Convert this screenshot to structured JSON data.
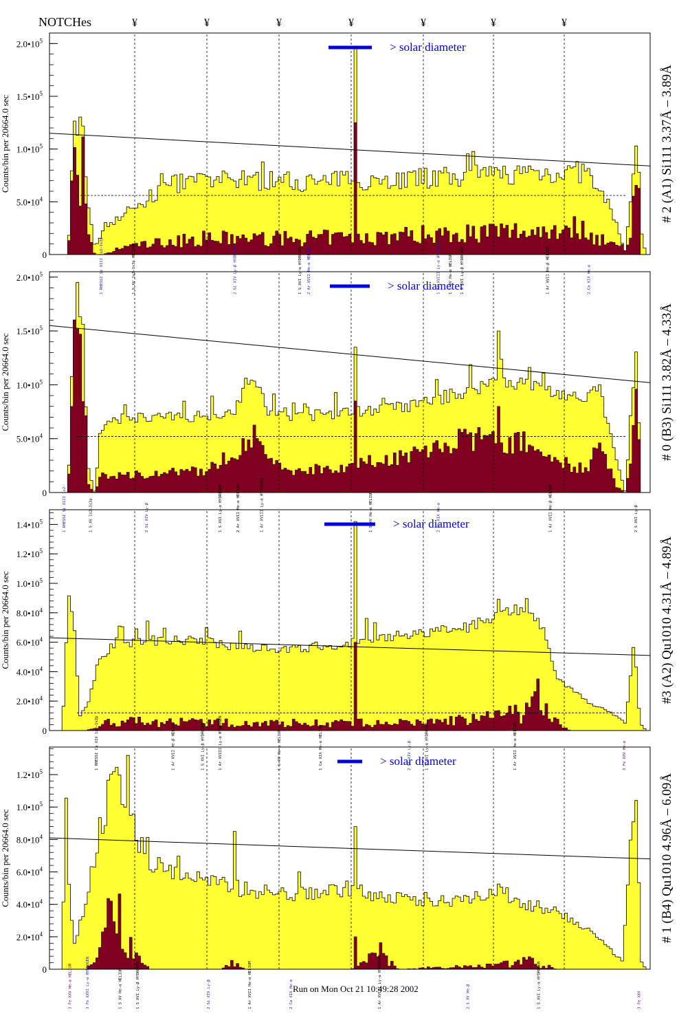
{
  "header": {
    "notches_label": "NOTCHes",
    "notch_marker": "¥",
    "notch_positions": [
      196,
      301,
      406,
      511,
      616,
      718,
      821
    ]
  },
  "footer": {
    "run_text": "Run on Mon Oct 21 10:49:28 2002"
  },
  "colors": {
    "total_fill": "#ffff33",
    "background_fill": "#800020",
    "outline": "#000000",
    "diameter_bar": "#0000dd",
    "annotation_blue": "#1a1acc",
    "annotation_purple": "#660066",
    "annotation_black": "#000000"
  },
  "chart_data": [
    {
      "type": "bar",
      "panel_id": "panel-1",
      "right_title": "# 2 (A1) Si111  3.37Å – 3.89Å",
      "ylabel": "Counts/bin per  20664.0 sec",
      "yticks": [
        {
          "v": 0,
          "text": "0"
        },
        {
          "v": 50000,
          "text": "5.0•10",
          "exp": "4"
        },
        {
          "v": 100000,
          "text": "1.0•10",
          "exp": "5"
        },
        {
          "v": 150000,
          "text": "1.5•10",
          "exp": "5"
        },
        {
          "v": 200000,
          "text": "2.0•10",
          "exp": "5"
        }
      ],
      "ylim": [
        0,
        210000
      ],
      "diameter_label": "> solar diameter",
      "diameter_bar_x": [
        478,
        541
      ],
      "fit_line": [
        115000,
        84000
      ],
      "dashed_level": 56000,
      "bins": 210,
      "fg_profile": [
        [
          0,
          0
        ],
        [
          0.02,
          0
        ],
        [
          0.03,
          120000
        ],
        [
          0.045,
          125000
        ],
        [
          0.055,
          40000
        ],
        [
          0.065,
          8000
        ],
        [
          0.09,
          30000
        ],
        [
          0.12,
          40000
        ],
        [
          0.2,
          68000
        ],
        [
          0.3,
          70000
        ],
        [
          0.4,
          70000
        ],
        [
          0.45,
          68000
        ],
        [
          0.5,
          72000
        ],
        [
          0.55,
          70000
        ],
        [
          0.6,
          72000
        ],
        [
          0.7,
          74000
        ],
        [
          0.8,
          78000
        ],
        [
          0.9,
          78000
        ],
        [
          0.95,
          30000
        ],
        [
          0.965,
          2000
        ],
        [
          0.975,
          60000
        ],
        [
          0.985,
          110000
        ],
        [
          0.992,
          20000
        ],
        [
          1,
          0
        ]
      ],
      "bg_profile": [
        [
          0,
          0
        ],
        [
          0.02,
          0
        ],
        [
          0.03,
          90000
        ],
        [
          0.045,
          80000
        ],
        [
          0.055,
          15000
        ],
        [
          0.065,
          0
        ],
        [
          0.08,
          0
        ],
        [
          0.12,
          8000
        ],
        [
          0.25,
          15000
        ],
        [
          0.4,
          15000
        ],
        [
          0.55,
          17000
        ],
        [
          0.65,
          20000
        ],
        [
          0.8,
          22000
        ],
        [
          0.88,
          26000
        ],
        [
          0.95,
          8000
        ],
        [
          0.97,
          10000
        ],
        [
          0.985,
          78000
        ],
        [
          0.992,
          0
        ],
        [
          1,
          0
        ]
      ],
      "fg_noise": 0.14,
      "bg_noise": 0.5,
      "spikes": [
        {
          "pos": 0.508,
          "fg": 195000,
          "bg": 125000
        }
      ],
      "annotations": [
        {
          "pos": 0.078,
          "text": "1 RHESSI  Si XIII 1s2–1s3p",
          "color": "blue"
        },
        {
          "pos": 0.133,
          "text": "1 S XV  1s2–1s3p HELIUM",
          "color": "black"
        },
        {
          "pos": 0.305,
          "text": "2 Si XIV  Ly-β  HYDROGEN",
          "color": "blue"
        },
        {
          "pos": 0.415,
          "text": "1 S XVI  Ly-α  HYDROGEN",
          "color": "black"
        },
        {
          "pos": 0.43,
          "text": "2 Ar XVII  He-α  HELIUM",
          "color": "blue"
        },
        {
          "pos": 0.65,
          "text": "1 Ar XVIII  Ly-α HYDROGEN",
          "color": "blue"
        },
        {
          "pos": 0.67,
          "text": "1 S XV  He-α  HELIUM",
          "color": "black"
        },
        {
          "pos": 0.69,
          "text": "1 S XVI Ly-β  HYDROGEN",
          "color": "black"
        },
        {
          "pos": 0.835,
          "text": "1 Ar XVII He-β  HELIUM",
          "color": "black"
        },
        {
          "pos": 0.905,
          "text": "2 Ca XIX  He-α",
          "color": "blue"
        }
      ]
    },
    {
      "type": "bar",
      "panel_id": "panel-2",
      "right_title": "# 0 (B3) Si111  3.82Å – 4.33Å",
      "ylabel": "Counts/bin per  20664.0 sec",
      "yticks": [
        {
          "v": 0,
          "text": "0"
        },
        {
          "v": 50000,
          "text": "5.0•10",
          "exp": "4"
        },
        {
          "v": 100000,
          "text": "1.0•10",
          "exp": "5"
        },
        {
          "v": 150000,
          "text": "1.5•10",
          "exp": "5"
        },
        {
          "v": 200000,
          "text": "2.0•10",
          "exp": "5"
        }
      ],
      "ylim": [
        0,
        205000
      ],
      "diameter_label": "> solar diameter",
      "diameter_bar_x": [
        480,
        538
      ],
      "fit_line": [
        155000,
        102000
      ],
      "dashed_level": 52000,
      "bins": 210,
      "fg_profile": [
        [
          0,
          0
        ],
        [
          0.02,
          0
        ],
        [
          0.03,
          170000
        ],
        [
          0.045,
          150000
        ],
        [
          0.055,
          20000
        ],
        [
          0.065,
          0
        ],
        [
          0.075,
          60000
        ],
        [
          0.12,
          70000
        ],
        [
          0.22,
          70000
        ],
        [
          0.3,
          75000
        ],
        [
          0.33,
          110000
        ],
        [
          0.36,
          75000
        ],
        [
          0.4,
          70000
        ],
        [
          0.5,
          75000
        ],
        [
          0.6,
          80000
        ],
        [
          0.7,
          95000
        ],
        [
          0.75,
          105000
        ],
        [
          0.8,
          100000
        ],
        [
          0.9,
          85000
        ],
        [
          0.92,
          100000
        ],
        [
          0.95,
          30000
        ],
        [
          0.965,
          0
        ],
        [
          0.975,
          80000
        ],
        [
          0.985,
          115000
        ],
        [
          0.992,
          0
        ],
        [
          1,
          0
        ]
      ],
      "bg_profile": [
        [
          0,
          0
        ],
        [
          0.02,
          0
        ],
        [
          0.03,
          150000
        ],
        [
          0.045,
          110000
        ],
        [
          0.055,
          5000
        ],
        [
          0.065,
          0
        ],
        [
          0.075,
          15000
        ],
        [
          0.25,
          20000
        ],
        [
          0.3,
          35000
        ],
        [
          0.33,
          55000
        ],
        [
          0.37,
          25000
        ],
        [
          0.4,
          20000
        ],
        [
          0.5,
          25000
        ],
        [
          0.6,
          35000
        ],
        [
          0.7,
          50000
        ],
        [
          0.8,
          45000
        ],
        [
          0.85,
          30000
        ],
        [
          0.9,
          20000
        ],
        [
          0.92,
          45000
        ],
        [
          0.95,
          5000
        ],
        [
          0.965,
          0
        ],
        [
          0.975,
          40000
        ],
        [
          0.985,
          100000
        ],
        [
          0.992,
          0
        ],
        [
          1,
          0
        ]
      ],
      "fg_noise": 0.07,
      "bg_noise": 0.25,
      "spikes": [
        {
          "pos": 0.508,
          "fg": 135000,
          "bg": 85000
        },
        {
          "pos": 0.75,
          "fg": 150000,
          "bg": 80000
        }
      ],
      "annotations": [
        {
          "pos": 0.015,
          "text": "1 RHESSI  Si XIII 1s2",
          "color": "blue"
        },
        {
          "pos": 0.06,
          "text": "1 S XV  1s2–1s3p",
          "color": "black"
        },
        {
          "pos": 0.155,
          "text": "2 Si XIV  Ly-β",
          "color": "blue"
        },
        {
          "pos": 0.28,
          "text": "1 S XVI  Ly-α  HYDROGEN",
          "color": "black"
        },
        {
          "pos": 0.31,
          "text": "2 Ar XVII  He-α HELIUM",
          "color": "black"
        },
        {
          "pos": 0.35,
          "text": "1 Ar XVIII  Ly-α HYDROGEN",
          "color": "black"
        },
        {
          "pos": 0.535,
          "text": "1 S XV  He-α  HELIUM",
          "color": "black"
        },
        {
          "pos": 0.65,
          "text": "2 Ca XIX  He-α",
          "color": "blue"
        },
        {
          "pos": 0.84,
          "text": "1 Ar XVII He-β  HELIUM",
          "color": "black"
        },
        {
          "pos": 0.985,
          "text": "2 S XVI Ly-β",
          "color": "black"
        }
      ]
    },
    {
      "type": "bar",
      "panel_id": "panel-3",
      "right_title": "#3 (A2) Qu1010  4.31Å – 4.89Å",
      "ylabel": "Counts/bin per  20664.0 sec",
      "yticks": [
        {
          "v": 0,
          "text": "0"
        },
        {
          "v": 20000,
          "text": "2.0•10",
          "exp": "4"
        },
        {
          "v": 40000,
          "text": "4.0•10",
          "exp": "4"
        },
        {
          "v": 60000,
          "text": "6.0•10",
          "exp": "4"
        },
        {
          "v": 80000,
          "text": "8.0•10",
          "exp": "4"
        },
        {
          "v": 100000,
          "text": "1.0•10",
          "exp": "5"
        },
        {
          "v": 120000,
          "text": "1.2•10",
          "exp": "5"
        },
        {
          "v": 140000,
          "text": "1.4•10",
          "exp": "5"
        }
      ],
      "ylim": [
        0,
        150000
      ],
      "diameter_label": "> solar diameter",
      "diameter_bar_x": [
        472,
        546
      ],
      "fit_line": [
        63000,
        51000
      ],
      "dashed_level": 12000,
      "bins": 210,
      "fg_profile": [
        [
          0,
          0
        ],
        [
          0.01,
          0
        ],
        [
          0.02,
          90000
        ],
        [
          0.03,
          70000
        ],
        [
          0.04,
          10000
        ],
        [
          0.055,
          20000
        ],
        [
          0.07,
          45000
        ],
        [
          0.1,
          60000
        ],
        [
          0.2,
          62000
        ],
        [
          0.3,
          58000
        ],
        [
          0.4,
          55000
        ],
        [
          0.5,
          60000
        ],
        [
          0.6,
          65000
        ],
        [
          0.7,
          70000
        ],
        [
          0.75,
          80000
        ],
        [
          0.8,
          85000
        ],
        [
          0.82,
          75000
        ],
        [
          0.85,
          35000
        ],
        [
          0.9,
          20000
        ],
        [
          0.95,
          10000
        ],
        [
          0.965,
          5000
        ],
        [
          0.98,
          60000
        ],
        [
          0.99,
          5000
        ],
        [
          1,
          0
        ]
      ],
      "bg_profile": [
        [
          0,
          0
        ],
        [
          0.05,
          0
        ],
        [
          0.07,
          2000
        ],
        [
          0.09,
          6000
        ],
        [
          0.3,
          5000
        ],
        [
          0.6,
          5000
        ],
        [
          0.72,
          8000
        ],
        [
          0.8,
          12000
        ],
        [
          0.82,
          25000
        ],
        [
          0.84,
          10000
        ],
        [
          0.87,
          0
        ],
        [
          1,
          0
        ]
      ],
      "fg_noise": 0.06,
      "bg_noise": 0.6,
      "spikes": [
        {
          "pos": 0.508,
          "fg": 142000,
          "bg": 60000
        }
      ],
      "annotations": [
        {
          "pos": 0.07,
          "text": "1 RHESSI  Ca XIX  1s2–1s2p",
          "color": "black"
        },
        {
          "pos": 0.2,
          "text": "1 Ar XVII He-β HELIUM",
          "color": "black"
        },
        {
          "pos": 0.25,
          "text": "1 S XVI Ly-β HYDROGEN",
          "color": "black"
        },
        {
          "pos": 0.28,
          "text": "1 Ar XVIII Ly-α HYDROGEN",
          "color": "black"
        },
        {
          "pos": 0.38,
          "text": "1 S XV He-α HELIUM",
          "color": "black"
        },
        {
          "pos": 0.45,
          "text": "1 Ca XIX He-α HELIUM",
          "color": "black"
        },
        {
          "pos": 0.6,
          "text": "2 Si XIV Ly-β",
          "color": "blue"
        },
        {
          "pos": 0.63,
          "text": "1 S XVI Ly-α HYDROGEN",
          "color": "black"
        },
        {
          "pos": 0.78,
          "text": "1 Ar XVII He-α HELIUM",
          "color": "black"
        },
        {
          "pos": 0.965,
          "text": "3 Fe XXV He-α",
          "color": "purple"
        }
      ]
    },
    {
      "type": "bar",
      "panel_id": "panel-4",
      "right_title": "# 1 (B4) Qu1010 4.96Å – 6.09Å",
      "ylabel": "Counts/bin per  20664.0 sec",
      "yticks": [
        {
          "v": 0,
          "text": "0"
        },
        {
          "v": 20000,
          "text": "2.0•10",
          "exp": "4"
        },
        {
          "v": 40000,
          "text": "4.0•10",
          "exp": "4"
        },
        {
          "v": 60000,
          "text": "6.0•10",
          "exp": "4"
        },
        {
          "v": 80000,
          "text": "8.0•10",
          "exp": "4"
        },
        {
          "v": 100000,
          "text": "1.0•10",
          "exp": "5"
        },
        {
          "v": 120000,
          "text": "1.2•10",
          "exp": "5"
        }
      ],
      "ylim": [
        0,
        137000
      ],
      "diameter_label": "> solar diameter",
      "diameter_bar_x": [
        491,
        527
      ],
      "fit_line": [
        81000,
        68000
      ],
      "dashed_level": 0,
      "bins": 210,
      "fg_profile": [
        [
          0,
          0
        ],
        [
          0.01,
          0
        ],
        [
          0.015,
          120000
        ],
        [
          0.02,
          60000
        ],
        [
          0.03,
          15000
        ],
        [
          0.05,
          40000
        ],
        [
          0.07,
          70000
        ],
        [
          0.09,
          110000
        ],
        [
          0.1,
          120000
        ],
        [
          0.12,
          105000
        ],
        [
          0.14,
          80000
        ],
        [
          0.16,
          65000
        ],
        [
          0.2,
          60000
        ],
        [
          0.25,
          55000
        ],
        [
          0.3,
          50000
        ],
        [
          0.35,
          48000
        ],
        [
          0.4,
          46000
        ],
        [
          0.45,
          48000
        ],
        [
          0.5,
          50000
        ],
        [
          0.55,
          45000
        ],
        [
          0.6,
          42000
        ],
        [
          0.65,
          42000
        ],
        [
          0.7,
          45000
        ],
        [
          0.75,
          48000
        ],
        [
          0.8,
          40000
        ],
        [
          0.85,
          35000
        ],
        [
          0.9,
          25000
        ],
        [
          0.93,
          15000
        ],
        [
          0.96,
          5000
        ],
        [
          0.975,
          80000
        ],
        [
          0.985,
          90000
        ],
        [
          0.992,
          5000
        ],
        [
          1,
          0
        ]
      ],
      "bg_profile": [
        [
          0,
          0
        ],
        [
          0.05,
          0
        ],
        [
          0.07,
          5000
        ],
        [
          0.08,
          20000
        ],
        [
          0.1,
          35000
        ],
        [
          0.12,
          15000
        ],
        [
          0.14,
          5000
        ],
        [
          0.16,
          0
        ],
        [
          0.28,
          0
        ],
        [
          0.3,
          4000
        ],
        [
          0.32,
          0
        ],
        [
          0.5,
          0
        ],
        [
          0.52,
          3000
        ],
        [
          0.55,
          10000
        ],
        [
          0.58,
          0
        ],
        [
          0.7,
          2000
        ],
        [
          0.8,
          5000
        ],
        [
          0.85,
          0
        ],
        [
          1,
          0
        ]
      ],
      "fg_noise": 0.1,
      "bg_noise": 0.8,
      "spikes": [
        {
          "pos": 0.508,
          "fg": 88000,
          "bg": 20000
        },
        {
          "pos": 0.303,
          "fg": 85000,
          "bg": 0
        }
      ],
      "annotations": [
        {
          "pos": 0.025,
          "text": "3 Fe XXV He-α HELIUM",
          "color": "purple"
        },
        {
          "pos": 0.055,
          "text": "3 Fe XXVI Ly-α HYDROGEN",
          "color": "blue"
        },
        {
          "pos": 0.11,
          "text": "1 S XV He-α HELIUM",
          "color": "black"
        },
        {
          "pos": 0.14,
          "text": "1 S XVI Ly-β HYDROGEN",
          "color": "black"
        },
        {
          "pos": 0.26,
          "text": "2 Si XIV Ly-β",
          "color": "blue"
        },
        {
          "pos": 0.33,
          "text": "1 Ar XVII He-α HELIUM",
          "color": "black"
        },
        {
          "pos": 0.4,
          "text": "2 Ca XIX He-α",
          "color": "blue"
        },
        {
          "pos": 0.55,
          "text": "1 Ar XVIII Ly-α HYDROGEN",
          "color": "black"
        },
        {
          "pos": 0.7,
          "text": "2 S XV He-β",
          "color": "blue"
        },
        {
          "pos": 0.82,
          "text": "1 S XVI Ly-α HYDROGEN",
          "color": "black"
        },
        {
          "pos": 0.99,
          "text": "3 Fe XXV",
          "color": "purple"
        }
      ]
    }
  ]
}
